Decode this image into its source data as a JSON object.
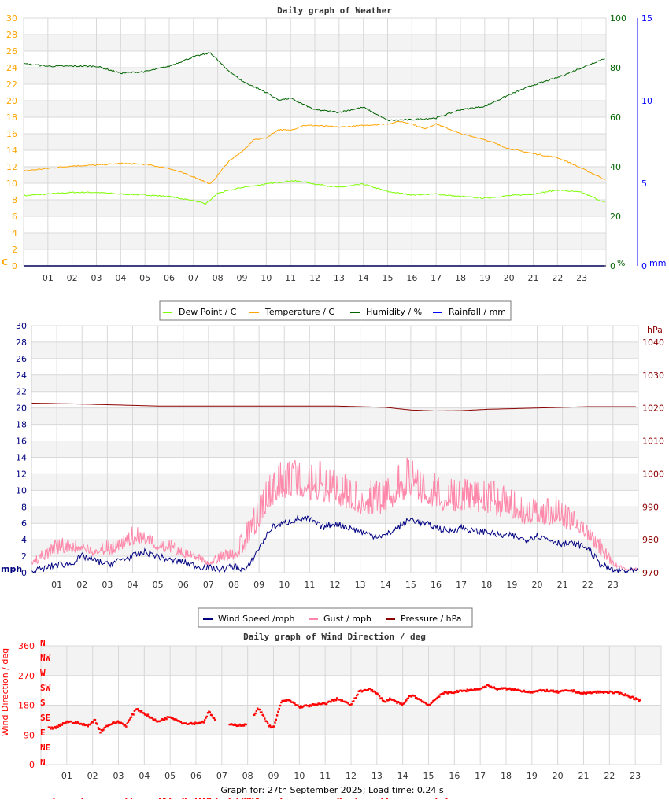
{
  "footer": "Graph for: 27th September 2025; Load time: 0.24 s",
  "hour_labels": [
    "01",
    "02",
    "03",
    "04",
    "05",
    "06",
    "07",
    "08",
    "09",
    "10",
    "11",
    "12",
    "13",
    "14",
    "15",
    "16",
    "17",
    "18",
    "19",
    "20",
    "21",
    "22",
    "23"
  ],
  "chart_data": [
    {
      "type": "line",
      "title": "Daily graph of Weather",
      "x_unit": "hour",
      "xlim": [
        0,
        24
      ],
      "grid": true,
      "legend_placement": "bottom",
      "axes": {
        "left": {
          "label": "C",
          "ylim": [
            0,
            30
          ],
          "ticks": [
            "0",
            "2",
            "4",
            "6",
            "8",
            "10",
            "12",
            "14",
            "16",
            "18",
            "20",
            "22",
            "24",
            "26",
            "28",
            "30"
          ],
          "color": "#ffa500"
        },
        "right_humidity": {
          "label": "%",
          "ylim": [
            0,
            100
          ],
          "ticks": [
            "0",
            "20",
            "40",
            "60",
            "80",
            "100"
          ],
          "color": "#006400"
        },
        "right_rain": {
          "label": "mm",
          "ylim": [
            0,
            15
          ],
          "ticks": [
            "0",
            "5",
            "10",
            "15"
          ],
          "color": "#0000ff"
        }
      },
      "series": [
        {
          "name": "Dew Point / C",
          "color": "#7cfc00",
          "axis": "left",
          "x": [
            0,
            1,
            2,
            3,
            4,
            5,
            6,
            7,
            7.5,
            8,
            9,
            10,
            11,
            11.5,
            12,
            13,
            14,
            15,
            16,
            17,
            18,
            19,
            20,
            21,
            22,
            23,
            24
          ],
          "y": [
            8.5,
            8.7,
            8.9,
            8.9,
            8.7,
            8.6,
            8.4,
            7.9,
            7.5,
            8.8,
            9.5,
            9.9,
            10.3,
            10.2,
            9.9,
            9.5,
            9.9,
            9.0,
            8.6,
            8.7,
            8.4,
            8.2,
            8.5,
            8.7,
            9.2,
            8.9,
            7.6
          ]
        },
        {
          "name": "Temperature / C",
          "color": "#ffa500",
          "axis": "left",
          "x": [
            0,
            1,
            2,
            3,
            4,
            5,
            6,
            7,
            7.7,
            8,
            8.5,
            9,
            9.5,
            10,
            10.5,
            11,
            11.5,
            12,
            13,
            14,
            15,
            15.5,
            16,
            16.5,
            17,
            18,
            19,
            20,
            21,
            22,
            22.5,
            23,
            24
          ],
          "y": [
            11.5,
            11.8,
            12.1,
            12.2,
            12.4,
            12.3,
            11.8,
            10.8,
            9.9,
            11.0,
            12.8,
            13.8,
            15.3,
            15.5,
            16.5,
            16.4,
            17.0,
            17.0,
            16.8,
            17.0,
            17.2,
            17.5,
            17.2,
            16.6,
            17.2,
            16.0,
            15.3,
            14.2,
            13.6,
            13.1,
            12.5,
            11.8,
            10.4
          ]
        },
        {
          "name": "Humidity / %",
          "color": "#006400",
          "axis": "right_humidity",
          "x": [
            0,
            1,
            2,
            3,
            4,
            5,
            6,
            7,
            7.7,
            8.3,
            9,
            10,
            10.5,
            11,
            12,
            13,
            14,
            15,
            16,
            17,
            18,
            19,
            20,
            21,
            22,
            23,
            24
          ],
          "y": [
            81.6,
            80.6,
            80.6,
            80.6,
            77.8,
            78.4,
            80.6,
            84.4,
            86,
            80,
            74.6,
            70,
            67,
            67.6,
            63,
            62,
            64,
            58.7,
            59,
            59.7,
            63,
            64.4,
            69,
            73,
            76,
            80,
            84
          ]
        },
        {
          "name": "Rainfall / mm",
          "color": "#0000ff",
          "axis": "right_rain",
          "x": [
            0,
            24
          ],
          "y": [
            0,
            0
          ]
        }
      ]
    },
    {
      "type": "line",
      "title": "",
      "x_unit": "hour",
      "xlim": [
        0,
        24
      ],
      "grid": true,
      "legend_placement": "bottom",
      "axes": {
        "left": {
          "label": "mph",
          "ylim": [
            0,
            30
          ],
          "ticks": [
            "0",
            "2",
            "4",
            "6",
            "8",
            "10",
            "12",
            "14",
            "16",
            "18",
            "20",
            "22",
            "24",
            "26",
            "28",
            "30"
          ],
          "color": "#000080"
        },
        "right": {
          "label": "hPa",
          "ylim": [
            970,
            1045
          ],
          "ticks": [
            "970",
            "980",
            "990",
            "1000",
            "1010",
            "1020",
            "1030",
            "1040"
          ],
          "color": "#8b0000"
        }
      },
      "series": [
        {
          "name": "Wind Speed /mph",
          "color": "#000080",
          "axis": "left",
          "x": [
            0,
            0.5,
            1,
            1.5,
            2,
            2.5,
            3,
            3.5,
            4,
            4.5,
            5,
            5.5,
            6,
            6.5,
            7,
            7.5,
            8,
            8.5,
            9,
            9.5,
            10,
            10.5,
            11,
            11.5,
            12,
            12.5,
            13,
            13.5,
            14,
            14.5,
            15,
            15.5,
            16,
            16.5,
            17,
            17.5,
            18,
            18.5,
            19,
            19.5,
            20,
            20.5,
            21,
            21.5,
            22,
            22.5,
            23,
            23.5
          ],
          "y": [
            0.2,
            0.5,
            1.0,
            1.0,
            2.0,
            1.5,
            1.0,
            1.5,
            2.0,
            2.5,
            2.0,
            1.5,
            1.3,
            0.8,
            0.6,
            0.4,
            0.8,
            0.3,
            3.0,
            5.5,
            6.0,
            6.5,
            6.5,
            5.5,
            6.0,
            5.5,
            5.0,
            4.5,
            4.5,
            5.5,
            6.5,
            6.0,
            5.5,
            5.0,
            5.5,
            5.0,
            5.0,
            4.5,
            4.5,
            4.0,
            4.5,
            4.0,
            3.5,
            3.5,
            3.0,
            1.0,
            0.3,
            0.2
          ]
        },
        {
          "name": "Gust / mph",
          "color": "#ff88aa",
          "axis": "left",
          "x": [
            0,
            0.5,
            1,
            1.5,
            2,
            2.5,
            3,
            3.5,
            4,
            4.5,
            5,
            5.5,
            6,
            6.5,
            7,
            7.5,
            8,
            8.5,
            9,
            9.5,
            10,
            10.5,
            11,
            11.5,
            12,
            12.5,
            13,
            13.5,
            14,
            14.5,
            15,
            15.5,
            16,
            16.5,
            17,
            17.5,
            18,
            18.5,
            19,
            19.5,
            20,
            20.5,
            21,
            21.5,
            22,
            22.5,
            23,
            23.5
          ],
          "y": [
            1.2,
            2.5,
            3.5,
            3.5,
            3.5,
            2.5,
            3.5,
            3.5,
            5.0,
            4.5,
            3.5,
            3.5,
            2.5,
            2.4,
            1.2,
            2.4,
            2.4,
            5.0,
            8.0,
            11.0,
            12.0,
            12.0,
            11.5,
            12.0,
            11.0,
            10.5,
            9.5,
            10.0,
            10.0,
            12.0,
            13.0,
            11.0,
            11.0,
            10.0,
            10.0,
            10.0,
            10.0,
            9.5,
            9.0,
            8.0,
            8.0,
            8.0,
            8.0,
            6.5,
            5.0,
            3.5,
            1.2,
            0.5
          ]
        },
        {
          "name": "Pressure / hPa",
          "color": "#8b0000",
          "axis": "right",
          "x": [
            0,
            2,
            5,
            8,
            10,
            12,
            13,
            14,
            15,
            16,
            17,
            18,
            20,
            22,
            24
          ],
          "y": [
            1021.5,
            1021.2,
            1020.6,
            1020.6,
            1020.6,
            1020.6,
            1020.4,
            1020.2,
            1019.4,
            1019.1,
            1019.2,
            1019.6,
            1020.0,
            1020.4,
            1020.4
          ]
        }
      ]
    },
    {
      "type": "scatter",
      "title": "Daily graph of Wind Direction / deg",
      "ylabel": "Wind Direction / deg",
      "x_unit": "hour",
      "xlim": [
        0,
        24
      ],
      "ylim": [
        0,
        360
      ],
      "grid": true,
      "yticks": [
        "0",
        "90",
        "180",
        "270",
        "360"
      ],
      "compass_labels": [
        "N",
        "NW",
        "W",
        "SW",
        "S",
        "SE",
        "E",
        "NE",
        "N"
      ],
      "color": "#ff0000",
      "x": [
        0.3,
        0.6,
        1,
        1.3,
        1.8,
        2.1,
        2.3,
        2.6,
        3,
        3.3,
        3.7,
        4,
        4.3,
        4.5,
        5,
        5.3,
        5.5,
        6,
        6.3,
        6.5,
        6.7,
        6.9,
        7.5,
        7.8,
        8,
        8.4,
        8.6,
        8.8,
        9,
        9.3,
        9.6,
        10,
        10.5,
        11,
        11.5,
        12,
        12.3,
        12.7,
        13,
        13.3,
        13.5,
        14,
        14.3,
        14.5,
        15,
        15.3,
        15.5,
        16,
        16.5,
        17,
        17.3,
        17.6,
        18,
        18.5,
        19,
        19.5,
        20,
        20.5,
        21,
        21.5,
        22,
        22.5,
        23,
        23.2
      ],
      "y": [
        110,
        112,
        130,
        128,
        118,
        135,
        100,
        120,
        130,
        118,
        170,
        155,
        140,
        130,
        145,
        135,
        125,
        125,
        130,
        160,
        140,
        120,
        120,
        120,
        120,
        170,
        150,
        120,
        110,
        190,
        195,
        175,
        180,
        185,
        200,
        180,
        220,
        230,
        215,
        190,
        200,
        180,
        210,
        205,
        180,
        200,
        215,
        220,
        225,
        230,
        240,
        230,
        230,
        225,
        220,
        225,
        220,
        225,
        215,
        220,
        220,
        215,
        200,
        195
      ]
    }
  ],
  "markers": {
    "hours": [
      0.5,
      1.6,
      3.3,
      3.5,
      4.6,
      4.75,
      4.8,
      5.0,
      5.5,
      5.6,
      6.0,
      6.15,
      6.3,
      6.45,
      6.55,
      6.8,
      7.3,
      7.6,
      7.8,
      7.9,
      8.0,
      8.1,
      8.2,
      8.35,
      8.4,
      9.3,
      11.5,
      11.6,
      12.2,
      13.2,
      13.4,
      15.3,
      15.7
    ],
    "color": "#ff0000"
  }
}
